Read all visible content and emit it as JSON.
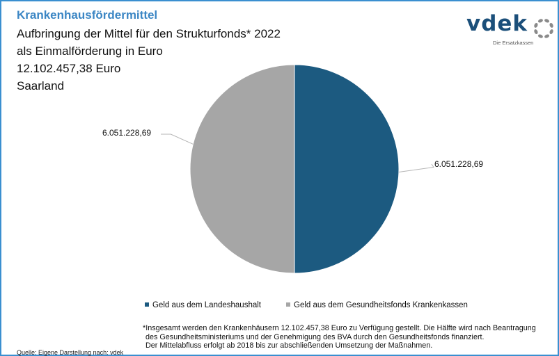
{
  "header": {
    "kicker": "Krankenhausfördermittel",
    "line1": "Aufbringung der Mittel für den Strukturfonds* 2022",
    "line2": "als Einmalförderung in Euro",
    "line3": "12.102.457,38 Euro",
    "line4": "Saarland"
  },
  "logo": {
    "word": "vdek",
    "subtitle": "Die Ersatzkassen",
    "color": "#1b4f7a"
  },
  "chart_data": {
    "type": "pie",
    "slices": [
      {
        "label": "Geld aus dem Landeshaushalt",
        "value": 6051228.69,
        "display": "6.051.228,69",
        "color": "#1c5a80"
      },
      {
        "label": "Geld aus dem Gesundheitsfonds Krankenkassen",
        "value": 6051228.69,
        "display": "6.051.228,69",
        "color": "#a6a6a6"
      }
    ],
    "legend_position": "bottom"
  },
  "footnote": {
    "line1": "*Insgesamt werden den Krankenhäusern 12.102.457,38  Euro zu Verfügung gestellt. Die Hälfte wird nach Beantragung",
    "line2": "des Gesundheitsministeriums und der Genehmigung des BVA durch den Gesundheitsfonds finanziert.",
    "line3": "Der Mittelabfluss erfolgt ab 2018 bis zur abschließenden Umsetzung der Maßnahmen."
  },
  "source": "Quelle: Eigene Darstellung nach: vdek"
}
